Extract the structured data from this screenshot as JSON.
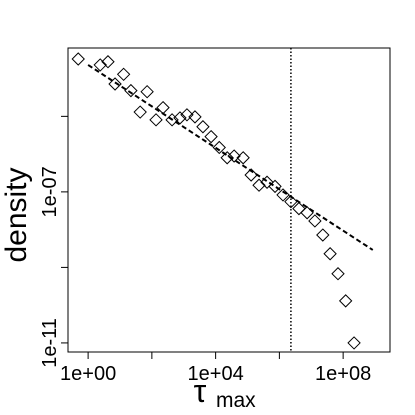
{
  "chart_data": {
    "type": "scatter",
    "xlabel": "τ",
    "xlabel_sub": "max",
    "ylabel": "density",
    "log_x": true,
    "log_y": true,
    "xlim": [
      0.234,
      2950000000.0
    ],
    "ylim": [
      5.75e-12,
      0.000646
    ],
    "xticks": [
      {
        "value": 1,
        "label": "1e+00"
      },
      {
        "value": 10000,
        "label": "1e+04"
      },
      {
        "value": 100000000,
        "label": "1e+08"
      }
    ],
    "minor_xticks": [
      100,
      1000000
    ],
    "yticks": [
      {
        "value": 1e-11,
        "label": "1e-11"
      },
      {
        "value": 1e-07,
        "label": "1e-07"
      }
    ],
    "minor_yticks": [
      1e-09,
      1e-05
    ],
    "marker_color": "#000000",
    "series": [
      {
        "x": [
          0.49,
          2.4,
          4.2,
          7.0,
          13,
          22,
          43,
          71,
          135,
          224,
          430,
          760,
          1260,
          2250,
          4000,
          7200,
          13000,
          23000,
          38000,
          73000,
          130000,
          230000,
          410000,
          730000,
          1300000,
          2300000,
          4100000,
          7400000,
          13000000,
          23000000,
          39000000,
          69000000,
          120000000,
          220000000
        ],
        "values": [
          0.00033,
          0.00023,
          0.00028,
          7.2e-05,
          0.00013,
          4.8e-05,
          1.3e-05,
          4.5e-05,
          8.1e-06,
          1.7e-05,
          8.1e-06,
          9.1e-06,
          1.1e-05,
          9.7e-06,
          5.3e-06,
          2.9e-06,
          1.5e-06,
          8e-07,
          8.9e-07,
          8e-07,
          2.8e-07,
          1.5e-07,
          1.8e-07,
          1.4e-07,
          8.3e-08,
          5.5e-08,
          3.6e-08,
          2.8e-08,
          1.7e-08,
          7.2e-09,
          2.3e-09,
          6.8e-10,
          1.3e-10,
          1e-11
        ]
      }
    ],
    "fit_line": {
      "x": [
        1,
        850000000
      ],
      "y": [
        0.00023,
        2.9e-09
      ]
    },
    "vline": 2300000
  }
}
